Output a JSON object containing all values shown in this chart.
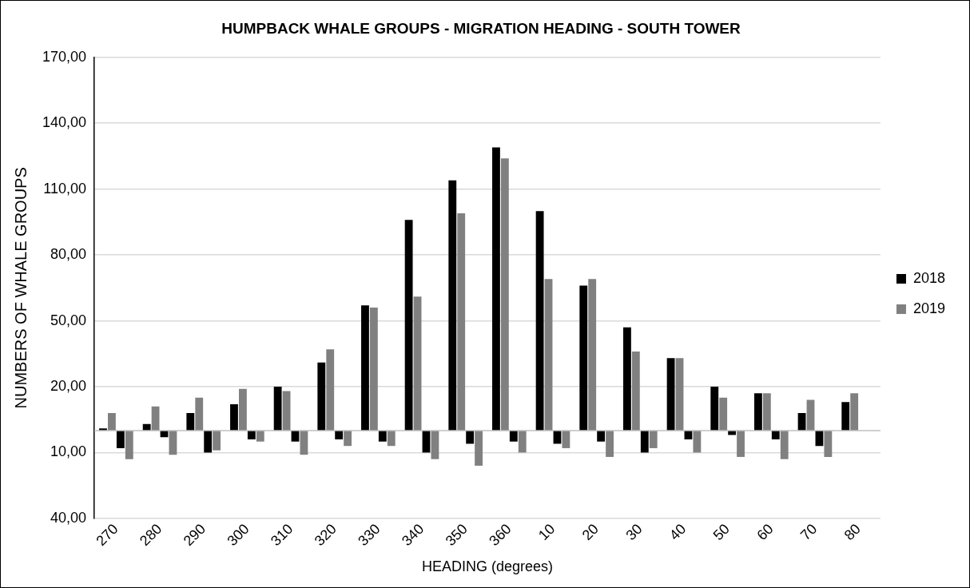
{
  "chart_data": {
    "type": "bar",
    "title": "HUMPBACK WHALE GROUPS - MIGRATION HEADING - SOUTH TOWER",
    "xlabel": "HEADING (degrees)",
    "ylabel": "NUMBERS OF WHALE GROUPS",
    "categories": [
      "270",
      "280",
      "290",
      "300",
      "310",
      "320",
      "330",
      "340",
      "350",
      "360",
      "10",
      "20",
      "30",
      "40",
      "50",
      "60",
      "70",
      "80"
    ],
    "series": [
      {
        "name": "2018",
        "color": "#000000",
        "values": [
          1,
          3,
          8,
          12,
          20,
          31,
          57,
          96,
          114,
          129,
          100,
          66,
          47,
          33,
          20,
          17,
          8,
          13
        ]
      },
      {
        "name": "2019",
        "color": "#808080",
        "values": [
          8,
          11,
          15,
          19,
          18,
          37,
          56,
          61,
          99,
          124,
          69,
          69,
          36,
          33,
          15,
          17,
          14,
          17
        ]
      },
      {
        "color": "#000000",
        "values": [
          -8,
          -3,
          -10,
          -4,
          -5,
          -4,
          -5,
          -10,
          -6,
          -5,
          -6,
          -5,
          -10,
          -4,
          -2,
          -4,
          -7,
          null
        ]
      },
      {
        "color": "#808080",
        "values": [
          -13,
          -11,
          -9,
          -5,
          -11,
          -7,
          -7,
          -13,
          -16,
          -10,
          -8,
          -12,
          -8,
          -10,
          -12,
          -13,
          -12,
          null
        ]
      }
    ],
    "ylim": [
      -40,
      170
    ],
    "yticks": [
      {
        "value": -40,
        "label": "40,00"
      },
      {
        "value": -10,
        "label": "10,00"
      },
      {
        "value": 20,
        "label": "20,00"
      },
      {
        "value": 50,
        "label": "50,00"
      },
      {
        "value": 80,
        "label": "80,00"
      },
      {
        "value": 110,
        "label": "110,00"
      },
      {
        "value": 140,
        "label": "140,00"
      },
      {
        "value": 170,
        "label": "170,00"
      }
    ],
    "grid": "y",
    "legend": "right"
  }
}
